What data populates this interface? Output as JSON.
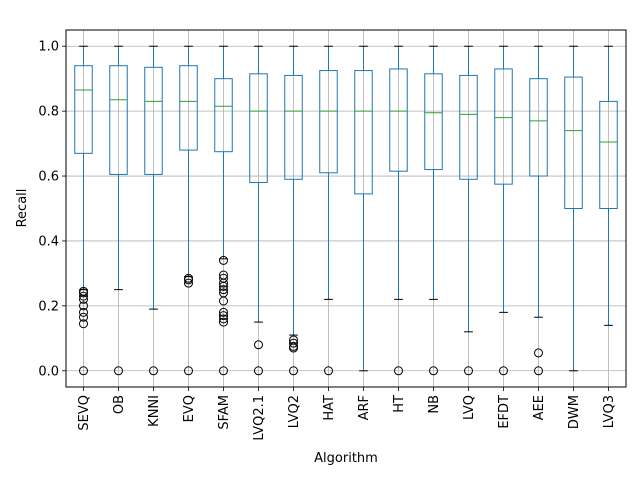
{
  "chart_data": {
    "type": "box",
    "xlabel": "Algorithm",
    "ylabel": "Recall",
    "ylim": [
      -0.05,
      1.05
    ],
    "yticks": [
      0.0,
      0.2,
      0.4,
      0.6,
      0.8,
      1.0
    ],
    "ytick_labels": [
      "0.0",
      "0.2",
      "0.4",
      "0.6",
      "0.8",
      "1.0"
    ],
    "grid": true,
    "colors": {
      "box": "#1f77b4",
      "median": "#2ca02c",
      "flier": "#000000",
      "grid": "#b0b0b0"
    },
    "categories": [
      "SEVQ",
      "OB",
      "KNNI",
      "EVQ",
      "SFAM",
      "LVQ2.1",
      "LVQ2",
      "HAT",
      "ARF",
      "HT",
      "NB",
      "LVQ",
      "EFDT",
      "AEE",
      "DWM",
      "LVQ3"
    ],
    "boxes": [
      {
        "name": "SEVQ",
        "whislo": 0.25,
        "q1": 0.67,
        "med": 0.865,
        "q3": 0.94,
        "whishi": 1.0,
        "fliers": [
          0.245,
          0.24,
          0.23,
          0.22,
          0.2,
          0.18,
          0.165,
          0.145,
          0.0
        ]
      },
      {
        "name": "OB",
        "whislo": 0.25,
        "q1": 0.605,
        "med": 0.835,
        "q3": 0.94,
        "whishi": 1.0,
        "fliers": [
          0.0
        ]
      },
      {
        "name": "KNNI",
        "whislo": 0.19,
        "q1": 0.605,
        "med": 0.83,
        "q3": 0.935,
        "whishi": 1.0,
        "fliers": [
          0.0
        ]
      },
      {
        "name": "EVQ",
        "whislo": 0.29,
        "q1": 0.68,
        "med": 0.83,
        "q3": 0.94,
        "whishi": 1.0,
        "fliers": [
          0.285,
          0.28,
          0.27,
          0.0
        ]
      },
      {
        "name": "SFAM",
        "whislo": 0.345,
        "q1": 0.675,
        "med": 0.815,
        "q3": 0.9,
        "whishi": 1.0,
        "fliers": [
          0.34,
          0.295,
          0.285,
          0.27,
          0.26,
          0.25,
          0.24,
          0.215,
          0.18,
          0.17,
          0.16,
          0.15,
          0.0
        ]
      },
      {
        "name": "LVQ2.1",
        "whislo": 0.15,
        "q1": 0.58,
        "med": 0.8,
        "q3": 0.915,
        "whishi": 1.0,
        "fliers": [
          0.08,
          0.0
        ]
      },
      {
        "name": "LVQ2",
        "whislo": 0.11,
        "q1": 0.59,
        "med": 0.8,
        "q3": 0.91,
        "whishi": 1.0,
        "fliers": [
          0.095,
          0.085,
          0.075,
          0.07,
          0.0
        ]
      },
      {
        "name": "HAT",
        "whislo": 0.22,
        "q1": 0.61,
        "med": 0.8,
        "q3": 0.925,
        "whishi": 1.0,
        "fliers": [
          0.0
        ]
      },
      {
        "name": "ARF",
        "whislo": 0.0,
        "q1": 0.545,
        "med": 0.8,
        "q3": 0.925,
        "whishi": 1.0,
        "fliers": []
      },
      {
        "name": "HT",
        "whislo": 0.22,
        "q1": 0.615,
        "med": 0.8,
        "q3": 0.93,
        "whishi": 1.0,
        "fliers": [
          0.0
        ]
      },
      {
        "name": "NB",
        "whislo": 0.22,
        "q1": 0.62,
        "med": 0.795,
        "q3": 0.915,
        "whishi": 1.0,
        "fliers": [
          0.0
        ]
      },
      {
        "name": "LVQ",
        "whislo": 0.12,
        "q1": 0.59,
        "med": 0.79,
        "q3": 0.91,
        "whishi": 1.0,
        "fliers": [
          0.0
        ]
      },
      {
        "name": "EFDT",
        "whislo": 0.18,
        "q1": 0.575,
        "med": 0.78,
        "q3": 0.93,
        "whishi": 1.0,
        "fliers": [
          0.0
        ]
      },
      {
        "name": "AEE",
        "whislo": 0.165,
        "q1": 0.6,
        "med": 0.77,
        "q3": 0.9,
        "whishi": 1.0,
        "fliers": [
          0.055,
          0.0
        ]
      },
      {
        "name": "DWM",
        "whislo": 0.0,
        "q1": 0.5,
        "med": 0.74,
        "q3": 0.905,
        "whishi": 1.0,
        "fliers": []
      },
      {
        "name": "LVQ3",
        "whislo": 0.14,
        "q1": 0.5,
        "med": 0.705,
        "q3": 0.83,
        "whishi": 1.0,
        "fliers": []
      }
    ]
  }
}
